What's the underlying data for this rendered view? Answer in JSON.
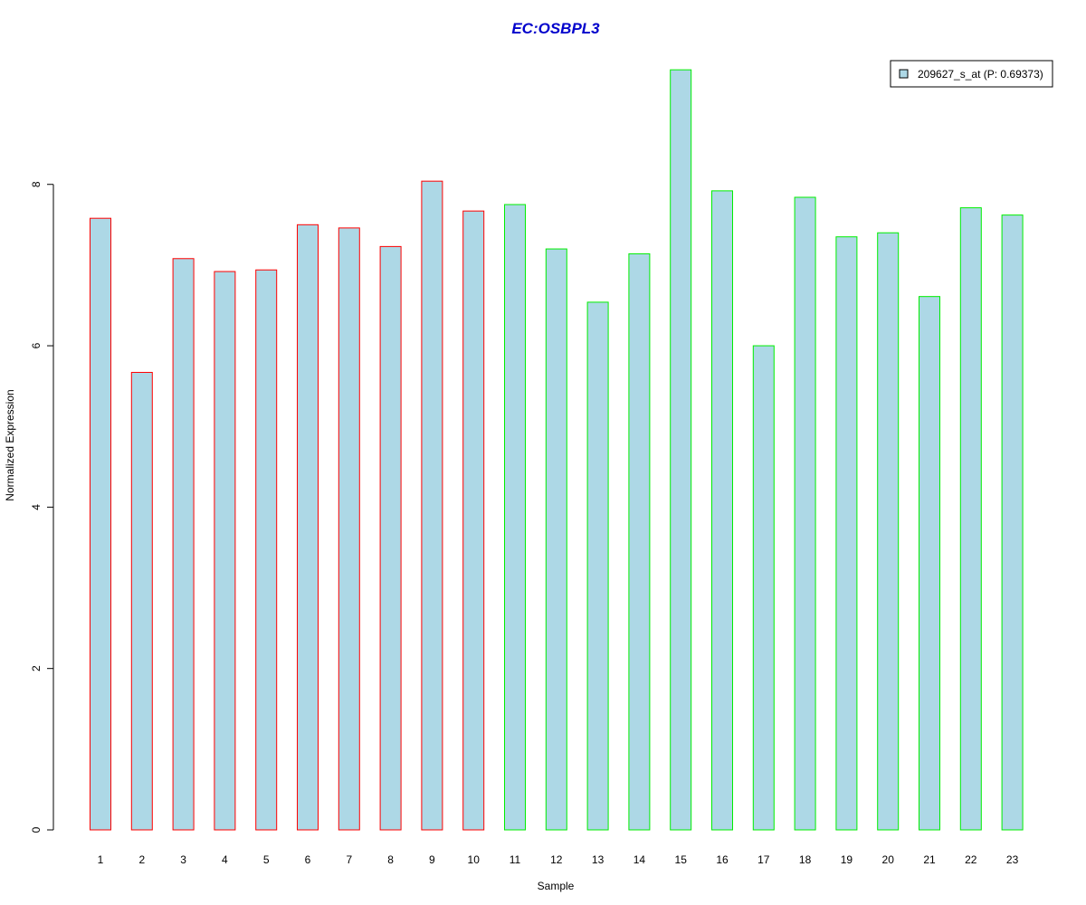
{
  "chart_data": {
    "type": "bar",
    "title": "EC:OSBPL3",
    "xlabel": "Sample",
    "ylabel": "Normalized Expression",
    "ylim": [
      0,
      9.5
    ],
    "yticks": [
      0,
      2,
      4,
      6,
      8
    ],
    "categories": [
      "1",
      "2",
      "3",
      "4",
      "5",
      "6",
      "7",
      "8",
      "9",
      "10",
      "11",
      "12",
      "13",
      "14",
      "15",
      "16",
      "17",
      "18",
      "19",
      "20",
      "21",
      "22",
      "23"
    ],
    "series": [
      {
        "name": "209627_s_at (P: 0.69373)",
        "values": [
          7.58,
          5.67,
          7.08,
          6.92,
          6.94,
          7.5,
          7.46,
          7.23,
          8.04,
          7.67,
          7.75,
          7.2,
          6.54,
          7.14,
          9.42,
          7.92,
          6.0,
          7.84,
          7.35,
          7.4,
          6.61,
          7.71,
          7.62
        ]
      }
    ],
    "groups": [
      {
        "samples": [
          1,
          10
        ],
        "border_color": "#ff0000"
      },
      {
        "samples": [
          11,
          23
        ],
        "border_color": "#00ee00"
      }
    ],
    "legend": {
      "entry": "209627_s_at (P: 0.69373)",
      "placement": "top-right"
    },
    "colors": {
      "bar_fill": "#add8e6",
      "title": "#0000cc"
    },
    "grid": false
  }
}
